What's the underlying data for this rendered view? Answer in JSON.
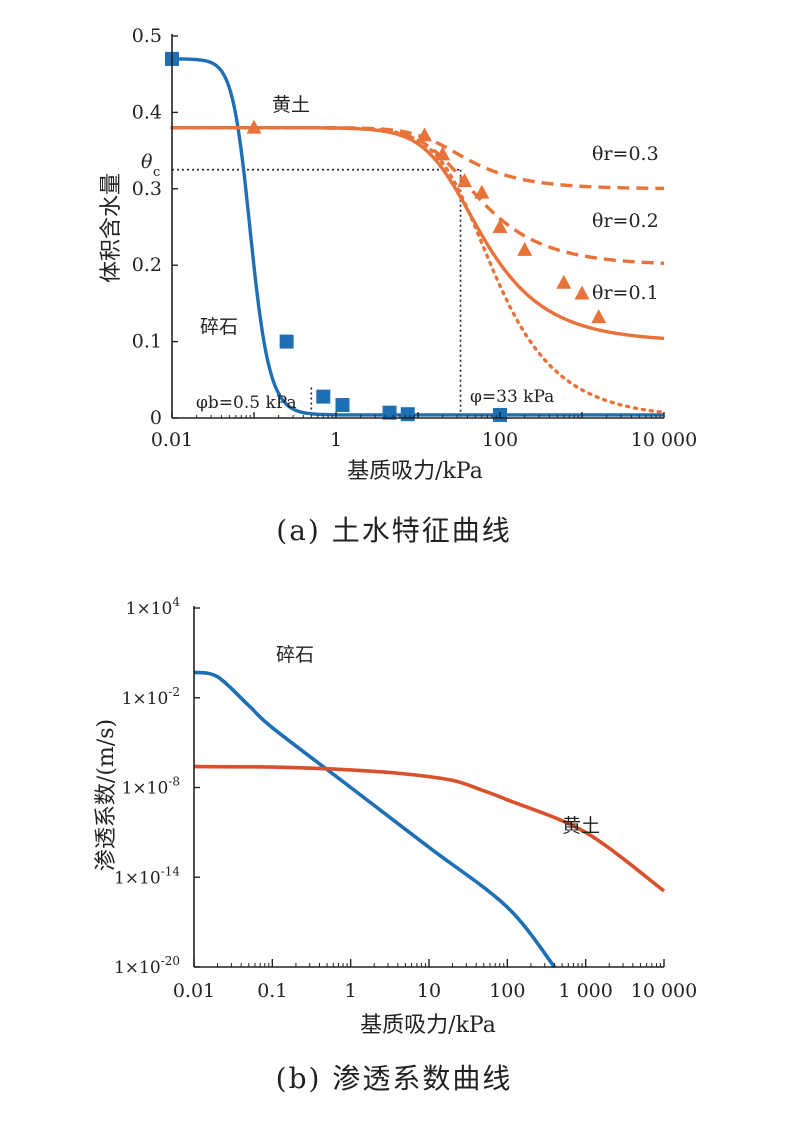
{
  "colors": {
    "blue": "#1f6fb5",
    "orange": "#e8733a",
    "red_orange": "#d9502a",
    "axis": "#222222"
  },
  "chart_data": [
    {
      "type": "line",
      "caption": "(a) 土水特征曲线",
      "xlabel": "基质吸力/kPa",
      "ylabel": "体积含水量",
      "xscale": "log",
      "xlim": [
        0.01,
        10000
      ],
      "ylim": [
        0,
        0.5
      ],
      "x_tick_labels": [
        "0.01",
        "1",
        "100",
        "10 000"
      ],
      "y_tick_labels": [
        "0",
        "0.1",
        "0.2",
        "0.3",
        "0.4",
        "0.5"
      ],
      "annotations": {
        "loess": "黄土",
        "gravel": "碎石",
        "theta_c": "θ",
        "theta_c_sub": "c",
        "theta_r_03": "θr=0.3",
        "theta_r_02": "θr=0.2",
        "theta_r_01": "θr=0.1",
        "phi_b": "φb=0.5 kPa",
        "phi": "φ=33 kPa"
      },
      "reference_lines": {
        "theta_c": 0.325,
        "phi_b_kpa": 0.5,
        "phi_kpa": 33
      },
      "series": [
        {
          "name": "碎石",
          "style": "solid",
          "color": "blue",
          "theta_s": 0.47,
          "theta_r": 0.004,
          "alpha": 12,
          "n": 4.2
        },
        {
          "name": "黄土",
          "style": "solid",
          "color": "orange",
          "theta_s": 0.38,
          "theta_r": 0.1,
          "alpha": 0.04,
          "n": 1.7
        },
        {
          "name": "θr=0.2",
          "style": "dashed",
          "color": "orange",
          "theta_s": 0.38,
          "theta_r": 0.2,
          "alpha": 0.045,
          "n": 1.7
        },
        {
          "name": "θr=0.3",
          "style": "dashed",
          "color": "orange",
          "theta_s": 0.38,
          "theta_r": 0.3,
          "alpha": 0.055,
          "n": 1.8
        },
        {
          "name": "dotted",
          "style": "dotted",
          "color": "orange",
          "theta_s": 0.38,
          "theta_r": 0.0,
          "alpha": 0.028,
          "n": 1.7
        }
      ],
      "points": {
        "gravel_squares": [
          [
            0.01,
            0.47
          ],
          [
            0.25,
            0.1
          ],
          [
            0.7,
            0.028
          ],
          [
            1.2,
            0.017
          ],
          [
            4.5,
            0.007
          ],
          [
            7.5,
            0.005
          ],
          [
            100,
            0.004
          ]
        ],
        "loess_triangles": [
          [
            0.1,
            0.38
          ],
          [
            12,
            0.37
          ],
          [
            20,
            0.345
          ],
          [
            37,
            0.31
          ],
          [
            60,
            0.295
          ],
          [
            100,
            0.25
          ],
          [
            200,
            0.22
          ],
          [
            600,
            0.177
          ],
          [
            1000,
            0.163
          ],
          [
            1600,
            0.132
          ]
        ]
      }
    },
    {
      "type": "line",
      "caption": "(b) 渗透系数曲线",
      "xlabel": "基质吸力/kPa",
      "ylabel": "渗透系数/(m/s)",
      "xscale": "log",
      "yscale": "log",
      "xlim": [
        0.01,
        10000
      ],
      "ylim_exp": [
        -20,
        4
      ],
      "x_tick_labels": [
        "0.01",
        "0.1",
        "1",
        "10",
        "100",
        "1 000",
        "10 000"
      ],
      "y_tick_labels": [
        {
          "base": "1×10",
          "exp": "4",
          "value_exp": 4
        },
        {
          "base": "1×10",
          "exp": "-2",
          "value_exp": -2
        },
        {
          "base": "1×10",
          "exp": "-8",
          "value_exp": -8
        },
        {
          "base": "1×10",
          "exp": "-14",
          "value_exp": -14
        },
        {
          "base": "1×10",
          "exp": "-20",
          "value_exp": -20
        }
      ],
      "annotations": {
        "gravel": "碎石",
        "loess": "黄土"
      },
      "series": [
        {
          "name": "碎石",
          "color": "blue",
          "points": [
            [
              0.01,
              0.5
            ],
            [
              0.02,
              0.25
            ],
            [
              0.05,
              0.003
            ],
            [
              0.1,
              0.0001
            ],
            [
              1,
              1e-08
            ],
            [
              10,
              1e-12
            ],
            [
              100,
              1e-16
            ],
            [
              400,
              1e-20
            ]
          ]
        },
        {
          "name": "黄土",
          "color": "red_orange",
          "points": [
            [
              0.01,
              2.5e-07
            ],
            [
              0.1,
              2.3e-07
            ],
            [
              1,
              1.5e-07
            ],
            [
              5,
              8e-08
            ],
            [
              20,
              3e-08
            ],
            [
              50,
              6e-09
            ],
            [
              100,
              1.5e-09
            ],
            [
              1000,
              1e-11
            ],
            [
              10000,
              1.2e-15
            ]
          ]
        }
      ]
    }
  ]
}
